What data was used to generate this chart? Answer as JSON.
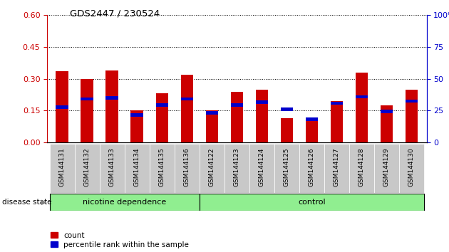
{
  "title": "GDS2447 / 230524",
  "samples": [
    "GSM144131",
    "GSM144132",
    "GSM144133",
    "GSM144134",
    "GSM144135",
    "GSM144136",
    "GSM144122",
    "GSM144123",
    "GSM144124",
    "GSM144125",
    "GSM144126",
    "GSM144127",
    "GSM144128",
    "GSM144129",
    "GSM144130"
  ],
  "count_values": [
    0.335,
    0.3,
    0.34,
    0.15,
    0.23,
    0.32,
    0.15,
    0.24,
    0.25,
    0.115,
    0.105,
    0.195,
    0.33,
    0.175,
    0.25
  ],
  "percentile_values": [
    0.165,
    0.205,
    0.21,
    0.13,
    0.175,
    0.205,
    0.14,
    0.175,
    0.19,
    0.155,
    0.11,
    0.185,
    0.215,
    0.145,
    0.195
  ],
  "group_labels": [
    "nicotine dependence",
    "control"
  ],
  "nd_count": 6,
  "bar_color": "#CC0000",
  "percentile_color": "#0000CC",
  "left_yaxis_color": "#CC0000",
  "right_yaxis_color": "#0000CC",
  "left_ylim": [
    0,
    0.6
  ],
  "right_ylim": [
    0,
    100
  ],
  "left_yticks": [
    0,
    0.15,
    0.3,
    0.45,
    0.6
  ],
  "right_yticks": [
    0,
    25,
    50,
    75,
    100
  ],
  "bg_color": "#ffffff",
  "cell_bg_color": "#c8c8c8",
  "group_color": "#90EE90",
  "disease_state_label": "disease state",
  "legend_count_label": "count",
  "legend_percentile_label": "percentile rank within the sample",
  "bar_width": 0.5
}
